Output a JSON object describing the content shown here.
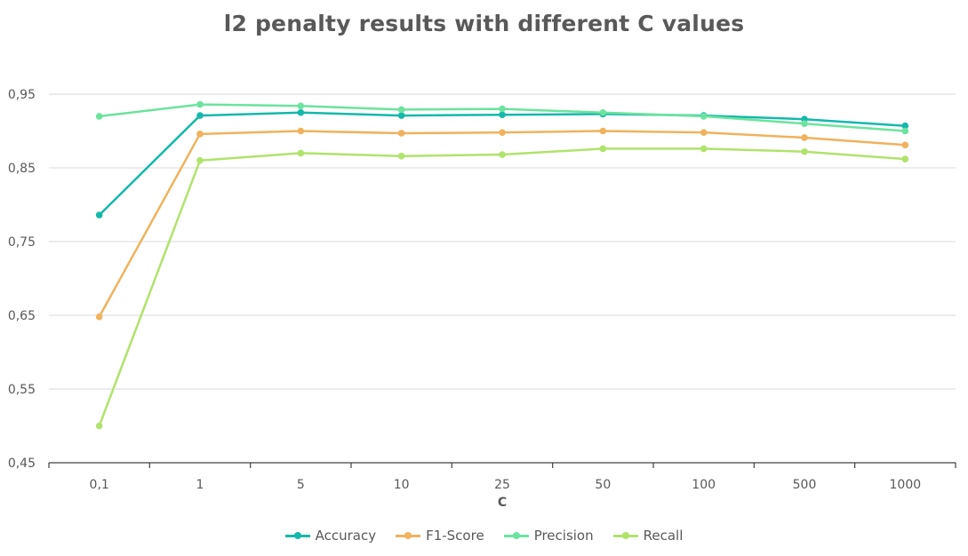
{
  "chart_data": {
    "type": "line",
    "title": "l2 penalty results with different C values",
    "xlabel": "C",
    "ylabel": "",
    "categories": [
      "0,1",
      "1",
      "5",
      "10",
      "25",
      "50",
      "100",
      "500",
      "1000"
    ],
    "ylim": [
      0.45,
      0.95
    ],
    "yticks": [
      0.45,
      0.55,
      0.65,
      0.75,
      0.85,
      0.95
    ],
    "ytick_labels": [
      "0,45",
      "0,55",
      "0,65",
      "0,75",
      "0,85",
      "0,95"
    ],
    "grid": "horizontal",
    "legend_position": "bottom",
    "series": [
      {
        "name": "Accuracy",
        "color": "#14b8ac",
        "values": [
          0.786,
          0.921,
          0.925,
          0.921,
          0.922,
          0.923,
          0.921,
          0.916,
          0.907
        ]
      },
      {
        "name": "F1-Score",
        "color": "#f0b25c",
        "values": [
          0.648,
          0.896,
          0.9,
          0.897,
          0.898,
          0.9,
          0.898,
          0.891,
          0.881
        ]
      },
      {
        "name": "Precision",
        "color": "#6be39e",
        "values": [
          0.92,
          0.936,
          0.934,
          0.929,
          0.93,
          0.925,
          0.92,
          0.91,
          0.9
        ]
      },
      {
        "name": "Recall",
        "color": "#b0e36b",
        "values": [
          0.5,
          0.86,
          0.87,
          0.866,
          0.868,
          0.876,
          0.876,
          0.872,
          0.862
        ]
      }
    ]
  }
}
